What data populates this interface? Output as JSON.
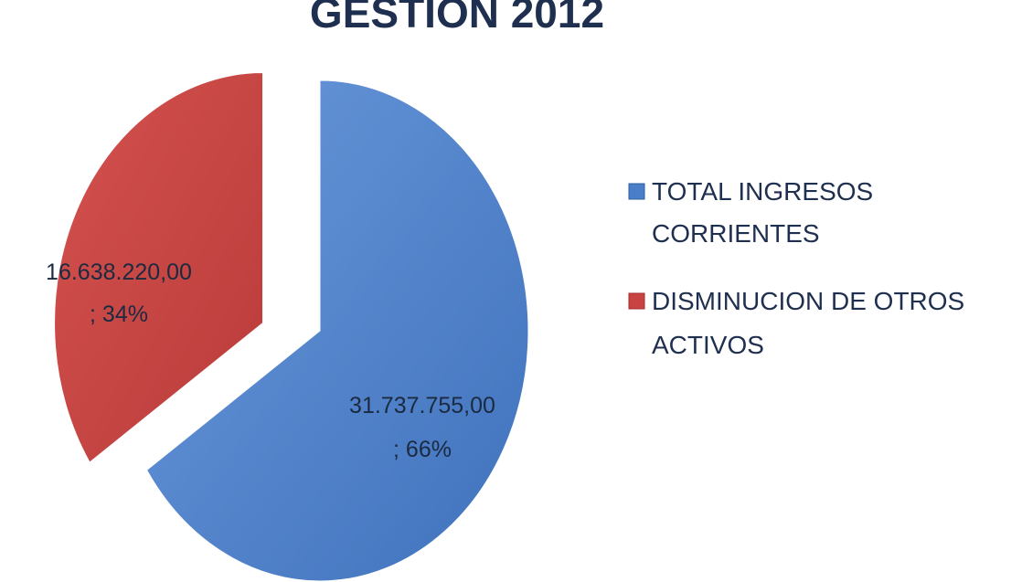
{
  "chart_data": {
    "type": "pie",
    "title": "GESTION 2012",
    "slices": [
      {
        "name": "TOTAL INGRESOS CORRIENTES",
        "value": 31737755.0,
        "value_label": "31.737.755,00",
        "percent_label": "; 66%",
        "color": "#4a7ec8"
      },
      {
        "name": "DISMINUCION DE OTROS ACTIVOS",
        "value": 16638220.0,
        "value_label": "16.638.220,00",
        "percent_label": "; 34%",
        "color": "#c94342"
      }
    ],
    "legend": {
      "position": "right",
      "items": [
        {
          "line1": "TOTAL INGRESOS",
          "line2": "CORRIENTES"
        },
        {
          "line1": "DISMINUCION DE OTROS",
          "line2": "ACTIVOS"
        }
      ]
    },
    "exploded_slice": "DISMINUCION DE OTROS ACTIVOS"
  }
}
